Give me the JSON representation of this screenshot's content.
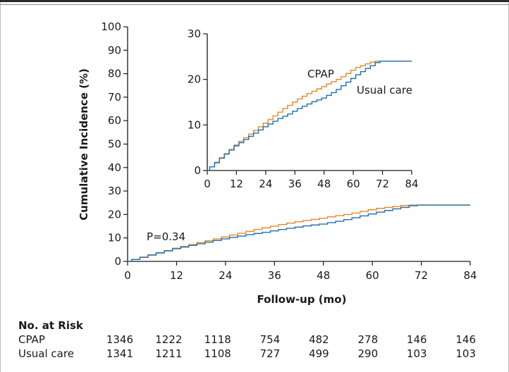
{
  "chart_data": {
    "type": "line",
    "xlabel": "Follow-up (mo)",
    "ylabel": "Cumulative Incidence (%)",
    "xlim": [
      0,
      84
    ],
    "ylim": [
      0,
      100
    ],
    "x_ticks": [
      0,
      12,
      24,
      36,
      48,
      60,
      72,
      84
    ],
    "y_ticks": [
      0,
      10,
      20,
      30,
      40,
      50,
      60,
      70,
      80,
      90,
      100
    ],
    "annotation": "P=0.34",
    "colors": {
      "CPAP": "#e8882a",
      "Usual care": "#1f6fb0"
    },
    "series": [
      {
        "name": "CPAP",
        "x": [
          0,
          2,
          4,
          6,
          8,
          10,
          12,
          14,
          16,
          18,
          20,
          22,
          24,
          26,
          28,
          30,
          32,
          34,
          36,
          38,
          40,
          42,
          44,
          46,
          48,
          50,
          52,
          54,
          56,
          58,
          60,
          62,
          64,
          66,
          68,
          70,
          72,
          74,
          76,
          78,
          80,
          82,
          84
        ],
        "values": [
          0,
          0.8,
          1.8,
          2.8,
          3.7,
          4.6,
          5.6,
          6.4,
          7.2,
          8.0,
          8.8,
          9.6,
          10.4,
          11.2,
          12.0,
          12.8,
          13.6,
          14.3,
          15.0,
          15.7,
          16.3,
          16.9,
          17.4,
          17.9,
          18.4,
          19.0,
          19.5,
          20.0,
          20.6,
          21.3,
          22.0,
          22.6,
          23.0,
          23.4,
          23.8,
          24.0,
          24.0,
          24.0,
          24.0,
          24.0,
          24.0,
          24.0,
          24.0
        ]
      },
      {
        "name": "Usual care",
        "x": [
          0,
          2,
          4,
          6,
          8,
          10,
          12,
          14,
          16,
          18,
          20,
          22,
          24,
          26,
          28,
          30,
          32,
          34,
          36,
          38,
          40,
          42,
          44,
          46,
          48,
          50,
          52,
          54,
          56,
          58,
          60,
          62,
          64,
          66,
          68,
          70,
          72,
          74,
          76,
          78,
          80,
          82,
          84
        ],
        "values": [
          0,
          0.8,
          1.7,
          2.7,
          3.6,
          4.5,
          5.4,
          6.1,
          6.8,
          7.5,
          8.2,
          8.9,
          9.6,
          10.2,
          10.8,
          11.4,
          11.9,
          12.4,
          13.0,
          13.6,
          14.1,
          14.6,
          15.1,
          15.5,
          15.9,
          16.5,
          17.1,
          17.8,
          18.6,
          19.4,
          20.2,
          21.0,
          21.7,
          22.4,
          23.0,
          23.7,
          24.0,
          24.0,
          24.0,
          24.0,
          24.0,
          24.0,
          24.0
        ]
      }
    ],
    "inset": {
      "xlim": [
        0,
        84
      ],
      "ylim": [
        0,
        30
      ],
      "x_ticks": [
        0,
        12,
        24,
        36,
        48,
        60,
        72,
        84
      ],
      "y_ticks": [
        0,
        10,
        20,
        30
      ],
      "labels": [
        "CPAP",
        "Usual care"
      ]
    },
    "risk_table": {
      "title": "No. at Risk",
      "rows": [
        {
          "label": "CPAP",
          "values": [
            "1346",
            "1222",
            "1118",
            "754",
            "482",
            "278",
            "146",
            "146"
          ]
        },
        {
          "label": "Usual care",
          "values": [
            "1341",
            "1211",
            "1108",
            "727",
            "499",
            "290",
            "103",
            "103"
          ]
        }
      ]
    }
  }
}
